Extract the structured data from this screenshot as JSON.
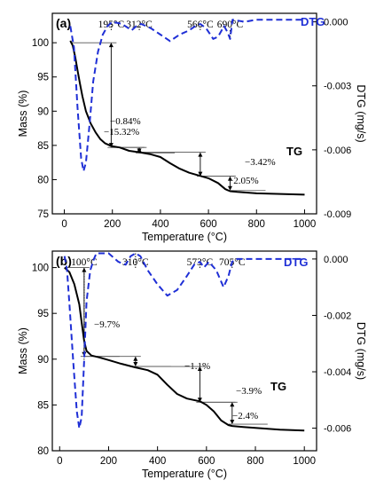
{
  "colors": {
    "tg": "#000000",
    "dtg": "#1f2fd6",
    "guide": "#555555"
  },
  "chart_data": [
    {
      "type": "line",
      "panel_label": "(a)",
      "xlabel": "Temperature (°C)",
      "ylabel_left": "Mass (%)",
      "ylabel_right": "DTG (mg/s)",
      "xlim": [
        -50,
        1050
      ],
      "ylim_left": [
        75,
        104.3
      ],
      "ylim_right": [
        -0.009,
        0.0004
      ],
      "x_ticks": [
        0,
        200,
        400,
        600,
        800,
        1000
      ],
      "x_tick_labels": [
        "0",
        "200",
        "400",
        "600",
        "800",
        "1000"
      ],
      "y_ticks_left": [
        75,
        80,
        85,
        90,
        95,
        100
      ],
      "y_tick_labels_left": [
        "75",
        "80",
        "85",
        "90",
        "95",
        "100"
      ],
      "y_ticks_right": [
        0.0,
        -0.003,
        -0.006,
        -0.009
      ],
      "y_tick_labels_right": [
        "0.000",
        "-0.003",
        "-0.006",
        "-0.009"
      ],
      "legend": [
        "DTG",
        "TG"
      ],
      "series": [
        {
          "name": "TG",
          "axis": "left",
          "style": "solid",
          "x": [
            25,
            35,
            45,
            55,
            65,
            75,
            90,
            110,
            130,
            150,
            170,
            195,
            230,
            270,
            312,
            360,
            400,
            440,
            480,
            520,
            560,
            600,
            640,
            670,
            690,
            720,
            800,
            900,
            1000
          ],
          "y": [
            100.3,
            99.6,
            98.0,
            96.0,
            94.0,
            92.2,
            90.0,
            88.2,
            86.9,
            85.9,
            85.3,
            84.9,
            84.7,
            84.2,
            84.0,
            83.7,
            83.3,
            82.4,
            81.6,
            81.0,
            80.6,
            80.2,
            79.5,
            78.6,
            78.3,
            78.2,
            78.0,
            77.9,
            77.8
          ]
        },
        {
          "name": "DTG",
          "axis": "right",
          "style": "dashed",
          "x": [
            25,
            40,
            55,
            70,
            80,
            90,
            105,
            120,
            140,
            160,
            180,
            200,
            240,
            280,
            300,
            320,
            360,
            400,
            440,
            480,
            520,
            545,
            566,
            590,
            620,
            640,
            665,
            680,
            690,
            700,
            750,
            800,
            900,
            1000
          ],
          "y": [
            -0.0002,
            -0.0012,
            -0.004,
            -0.0064,
            -0.007,
            -0.0066,
            -0.0048,
            -0.0028,
            -0.0014,
            -0.0006,
            -0.0002,
            0.0,
            -0.0001,
            -0.0004,
            -0.0002,
            -0.0001,
            -0.0003,
            -0.0006,
            -0.0009,
            -0.0006,
            -0.0004,
            -0.0002,
            -0.0001,
            -0.0003,
            -0.0008,
            -0.0007,
            -0.0002,
            -0.0005,
            -0.0008,
            0.0001,
            0.0,
            0.0001,
            0.0001,
            0.0001
          ]
        }
      ],
      "annotations": [
        {
          "text": "195°C",
          "x": 195
        },
        {
          "text": "312°C",
          "x": 312
        },
        {
          "text": "566°C",
          "x": 566
        },
        {
          "text": "690°C",
          "x": 690
        }
      ],
      "mass_losses": [
        {
          "text": "−15.32%",
          "from": 100.0,
          "to": 84.7,
          "x": 195
        },
        {
          "text": "−0.84%",
          "from": 84.7,
          "to": 83.9,
          "x": 312
        },
        {
          "text": "−3.42%",
          "from": 84.0,
          "to": 80.5,
          "x": 566
        },
        {
          "text": "−2.05%",
          "from": 80.5,
          "to": 78.4,
          "x": 690
        }
      ]
    },
    {
      "type": "line",
      "panel_label": "(b)",
      "xlabel": "Temperature (°C)",
      "ylabel_left": "Mass (%)",
      "ylabel_right": "DTG (mg/s)",
      "xlim": [
        -30,
        1050
      ],
      "ylim_left": [
        80,
        101.8
      ],
      "ylim_right": [
        -0.0068,
        0.00028
      ],
      "x_ticks": [
        0,
        200,
        400,
        600,
        800,
        1000
      ],
      "x_tick_labels": [
        "0",
        "200",
        "400",
        "600",
        "800",
        "1000"
      ],
      "y_ticks_left": [
        80,
        85,
        90,
        95,
        100
      ],
      "y_tick_labels_left": [
        "80",
        "85",
        "90",
        "95",
        "100"
      ],
      "y_ticks_right": [
        0.0,
        -0.002,
        -0.004,
        -0.006
      ],
      "y_tick_labels_right": [
        "0.000",
        "-0.002",
        "-0.004",
        "-0.006"
      ],
      "legend": [
        "DTG",
        "TG"
      ],
      "series": [
        {
          "name": "TG",
          "axis": "left",
          "style": "solid",
          "x": [
            20,
            40,
            60,
            80,
            90,
            100,
            110,
            130,
            160,
            200,
            250,
            310,
            360,
            400,
            440,
            480,
            520,
            573,
            600,
            630,
            660,
            690,
            705,
            750,
            800,
            900,
            1000
          ],
          "y": [
            100.0,
            99.5,
            98.2,
            96.0,
            94.0,
            92.0,
            90.9,
            90.4,
            90.2,
            89.9,
            89.5,
            89.1,
            88.8,
            88.3,
            87.2,
            86.2,
            85.7,
            85.4,
            85.0,
            84.3,
            83.3,
            82.8,
            82.7,
            82.6,
            82.5,
            82.3,
            82.2
          ]
        },
        {
          "name": "DTG",
          "axis": "right",
          "style": "dashed",
          "x": [
            20,
            30,
            40,
            55,
            70,
            80,
            90,
            100,
            110,
            125,
            140,
            150,
            170,
            200,
            240,
            270,
            290,
            310,
            330,
            360,
            400,
            440,
            480,
            520,
            550,
            573,
            590,
            610,
            640,
            670,
            690,
            705,
            720,
            800,
            900,
            1000
          ],
          "y": [
            0.0001,
            -0.0004,
            -0.0016,
            -0.0036,
            -0.0054,
            -0.006,
            -0.0056,
            -0.0036,
            -0.0015,
            -0.0004,
            0.0,
            0.0002,
            0.0002,
            0.0002,
            -0.0001,
            -0.0002,
            0.0001,
            0.0002,
            0.0001,
            -0.0004,
            -0.0009,
            -0.0013,
            -0.0011,
            -0.0006,
            -0.0002,
            -0.0001,
            -0.0003,
            -0.0001,
            -0.0004,
            -0.001,
            -0.0006,
            -0.0001,
            0.0,
            0.0,
            0.0,
            0.0
          ]
        }
      ],
      "annotations": [
        {
          "text": "100°C",
          "x": 100
        },
        {
          "text": "310°C",
          "x": 310
        },
        {
          "text": "573°C",
          "x": 573
        },
        {
          "text": "705°C",
          "x": 705
        }
      ],
      "mass_losses": [
        {
          "text": "−9.7%",
          "from": 100.0,
          "to": 90.3,
          "x": 100
        },
        {
          "text": "−1.1%",
          "from": 90.3,
          "to": 89.2,
          "x": 310
        },
        {
          "text": "−3.9%",
          "from": 89.2,
          "to": 85.3,
          "x": 573
        },
        {
          "text": "−2.4%",
          "from": 85.3,
          "to": 82.9,
          "x": 705
        }
      ]
    }
  ]
}
